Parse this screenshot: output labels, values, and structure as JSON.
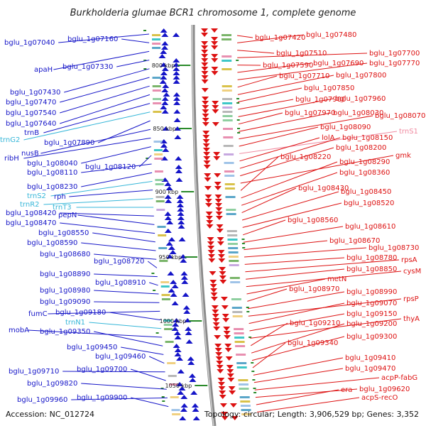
{
  "title": "Burkholderia glumae BCR1 chromosome 1, complete genome",
  "footer": {
    "accession": "Accession: NC_012724",
    "summary": "Topology: circular; Length: 3,906,529 bp; Genes: 3,352"
  },
  "colors": {
    "left_gene": "#1515c8",
    "left_rna": "#35b6d8",
    "right_gene": "#dd1111",
    "right_rna": "#f08aa0",
    "backbone": "#8a8a8a",
    "tick": "#2a8a2a"
  },
  "ticks": [
    "800 kbp",
    "850 kbp",
    "900 kbp",
    "950 kbp",
    "1000 kbp",
    "1050 kbp"
  ],
  "left_labels": [
    {
      "text": "bglu_1g07040",
      "type": "gene"
    },
    {
      "text": "bglu_1g07160",
      "type": "gene"
    },
    {
      "text": "apaH",
      "type": "gene"
    },
    {
      "text": "bglu_1g07330",
      "type": "gene"
    },
    {
      "text": "bglu_1g07430",
      "type": "gene"
    },
    {
      "text": "bglu_1g07470",
      "type": "gene"
    },
    {
      "text": "bglu_1g07540",
      "type": "gene"
    },
    {
      "text": "bglu_1g07640",
      "type": "gene"
    },
    {
      "text": "trnB",
      "type": "gene"
    },
    {
      "text": "trnG2",
      "type": "rna"
    },
    {
      "text": "bglu_1g07890",
      "type": "gene"
    },
    {
      "text": "nusB",
      "type": "gene"
    },
    {
      "text": "ribH",
      "type": "gene"
    },
    {
      "text": "bglu_1g08040",
      "type": "gene"
    },
    {
      "text": "bglu_1g08120",
      "type": "gene"
    },
    {
      "text": "bglu_1g08110",
      "type": "gene"
    },
    {
      "text": "bglu_1g08230",
      "type": "gene"
    },
    {
      "text": "trnS2",
      "type": "rna"
    },
    {
      "text": "rph",
      "type": "gene"
    },
    {
      "text": "trnR2",
      "type": "rna"
    },
    {
      "text": "trnT3",
      "type": "rna"
    },
    {
      "text": "bglu_1g08420",
      "type": "gene"
    },
    {
      "text": "pepN",
      "type": "gene"
    },
    {
      "text": "bglu_1g08470",
      "type": "gene"
    },
    {
      "text": "bglu_1g08550",
      "type": "gene"
    },
    {
      "text": "bglu_1g08590",
      "type": "gene"
    },
    {
      "text": "bglu_1g08680",
      "type": "gene"
    },
    {
      "text": "bglu_1g08720",
      "type": "gene"
    },
    {
      "text": "bglu_1g08890",
      "type": "gene"
    },
    {
      "text": "bglu_1g08910",
      "type": "gene"
    },
    {
      "text": "bglu_1g08980",
      "type": "gene"
    },
    {
      "text": "bglu_1g09090",
      "type": "gene"
    },
    {
      "text": "fumC",
      "type": "gene"
    },
    {
      "text": "bglu_1g09180",
      "type": "gene"
    },
    {
      "text": "trnN1",
      "type": "rna"
    },
    {
      "text": "mobA",
      "type": "gene"
    },
    {
      "text": "bglu_1g09350",
      "type": "gene"
    },
    {
      "text": "bglu_1g09450",
      "type": "gene"
    },
    {
      "text": "bglu_1g09460",
      "type": "gene"
    },
    {
      "text": "bglu_1g09710",
      "type": "gene"
    },
    {
      "text": "bglu_1g09700",
      "type": "gene"
    },
    {
      "text": "bglu_1g09820",
      "type": "gene"
    },
    {
      "text": "bglu_1g09960",
      "type": "gene"
    },
    {
      "text": "bglu_1g09900",
      "type": "gene"
    }
  ],
  "right_labels": [
    {
      "text": "bglu_1g07420",
      "type": "gene"
    },
    {
      "text": "bglu_1g07480",
      "type": "gene"
    },
    {
      "text": "bglu_1g07510",
      "type": "gene"
    },
    {
      "text": "bglu_1g07700",
      "type": "gene"
    },
    {
      "text": "bglu_1g07590",
      "type": "gene"
    },
    {
      "text": "bglu_1g07690",
      "type": "gene"
    },
    {
      "text": "bglu_1g07770",
      "type": "gene"
    },
    {
      "text": "bglu_1g07710",
      "type": "gene"
    },
    {
      "text": "bglu_1g07800",
      "type": "gene"
    },
    {
      "text": "bglu_1g07850",
      "type": "gene"
    },
    {
      "text": "bglu_1g07900",
      "type": "gene"
    },
    {
      "text": "bglu_1g07960",
      "type": "gene"
    },
    {
      "text": "bglu_1g07970",
      "type": "gene"
    },
    {
      "text": "bglu_1g08030",
      "type": "gene"
    },
    {
      "text": "bglu_1g08070",
      "type": "gene"
    },
    {
      "text": "bglu_1g08090",
      "type": "gene"
    },
    {
      "text": "trnS1",
      "type": "rna"
    },
    {
      "text": "lolA",
      "type": "gene"
    },
    {
      "text": "bglu_1g08150",
      "type": "gene"
    },
    {
      "text": "bglu_1g08200",
      "type": "gene"
    },
    {
      "text": "gmk",
      "type": "gene"
    },
    {
      "text": "bglu_1g08220",
      "type": "gene"
    },
    {
      "text": "bglu_1g08290",
      "type": "gene"
    },
    {
      "text": "bglu_1g08360",
      "type": "gene"
    },
    {
      "text": "bglu_1g08430",
      "type": "gene"
    },
    {
      "text": "bglu_1g08450",
      "type": "gene"
    },
    {
      "text": "bglu_1g08520",
      "type": "gene"
    },
    {
      "text": "bglu_1g08560",
      "type": "gene"
    },
    {
      "text": "bglu_1g08610",
      "type": "gene"
    },
    {
      "text": "bglu_1g08670",
      "type": "gene"
    },
    {
      "text": "bglu_1g08730",
      "type": "gene"
    },
    {
      "text": "bglu_1g08780",
      "type": "gene"
    },
    {
      "text": "rpsA",
      "type": "gene"
    },
    {
      "text": "bglu_1g08850",
      "type": "gene"
    },
    {
      "text": "cysM",
      "type": "gene"
    },
    {
      "text": "metN",
      "type": "gene"
    },
    {
      "text": "bglu_1g08970",
      "type": "gene"
    },
    {
      "text": "bglu_1g08990",
      "type": "gene"
    },
    {
      "text": "rpsP",
      "type": "gene"
    },
    {
      "text": "bglu_1g09070",
      "type": "gene"
    },
    {
      "text": "bglu_1g09150",
      "type": "gene"
    },
    {
      "text": "thyA",
      "type": "gene"
    },
    {
      "text": "bglu_1g09210",
      "type": "gene"
    },
    {
      "text": "bglu_1g09200",
      "type": "gene"
    },
    {
      "text": "bglu_1g09300",
      "type": "gene"
    },
    {
      "text": "bglu_1g09340",
      "type": "gene"
    },
    {
      "text": "bglu_1g09410",
      "type": "gene"
    },
    {
      "text": "bglu_1g09470",
      "type": "gene"
    },
    {
      "text": "acpP-fabG",
      "type": "gene"
    },
    {
      "text": "bglu_1g09620",
      "type": "gene"
    },
    {
      "text": "era",
      "type": "gene"
    },
    {
      "text": "acpS-recO",
      "type": "gene"
    }
  ]
}
